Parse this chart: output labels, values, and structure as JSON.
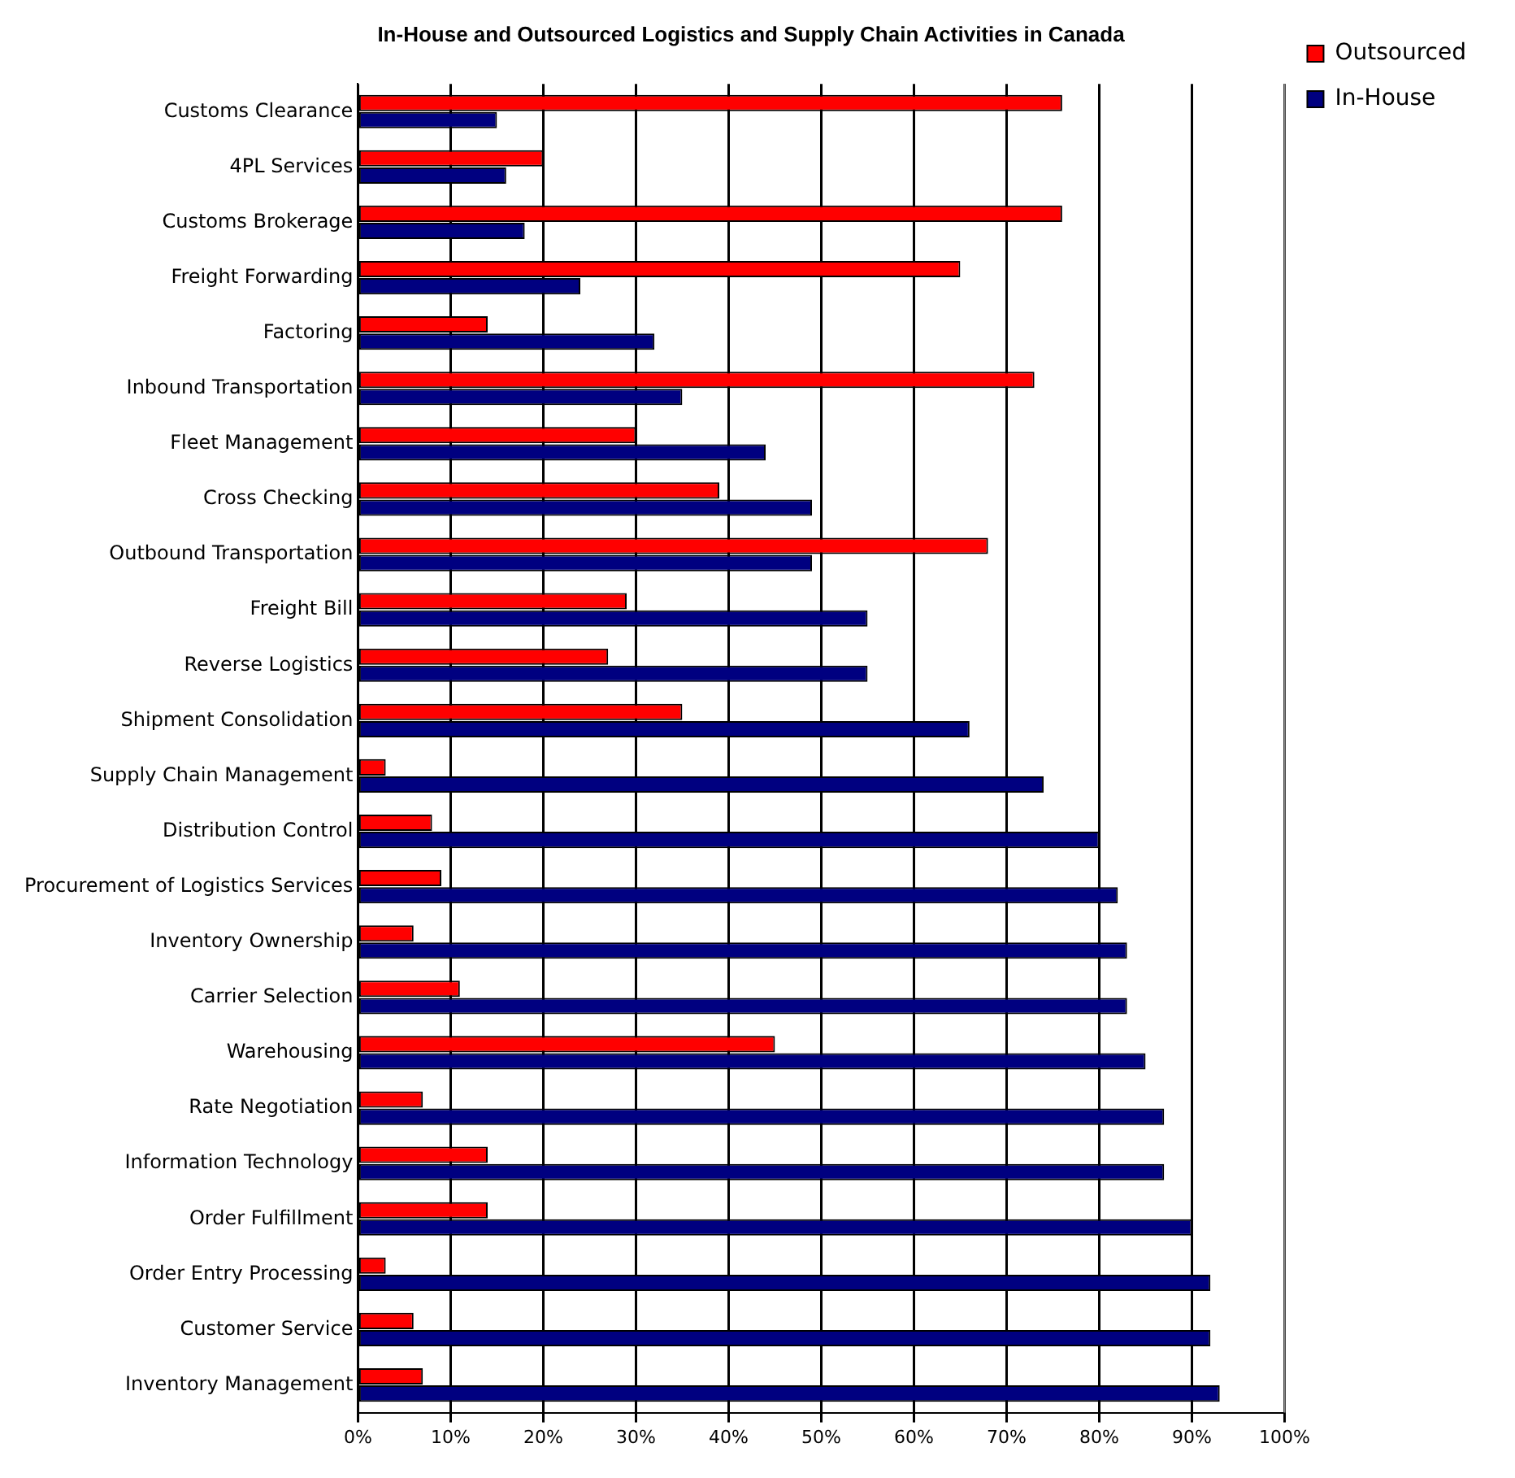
{
  "chart_data": {
    "type": "bar",
    "orientation": "horizontal",
    "title": "In-House and Outsourced Logistics and Supply Chain Activities in Canada",
    "categories": [
      "Customs Clearance",
      "4PL Services",
      "Customs Brokerage",
      "Freight Forwarding",
      "Factoring",
      "Inbound Transportation",
      "Fleet Management",
      "Cross Checking",
      "Outbound Transportation",
      "Freight Bill",
      "Reverse Logistics",
      "Shipment Consolidation",
      "Supply Chain Management",
      "Distribution Control",
      "Procurement of Logistics Services",
      "Inventory Ownership",
      "Carrier Selection",
      "Warehousing",
      "Rate Negotiation",
      "Information Technology",
      "Order Fulfillment",
      "Order Entry Processing",
      "Customer Service",
      "Inventory Management"
    ],
    "series": [
      {
        "name": "Outsourced",
        "color": "#ff0000",
        "values": [
          76,
          20,
          76,
          65,
          14,
          73,
          30,
          39,
          68,
          29,
          27,
          35,
          3,
          8,
          9,
          6,
          11,
          45,
          7,
          14,
          14,
          3,
          6,
          7
        ]
      },
      {
        "name": "In-House",
        "color": "#000080",
        "values": [
          15,
          16,
          18,
          24,
          32,
          35,
          44,
          49,
          49,
          55,
          55,
          66,
          74,
          80,
          82,
          83,
          83,
          85,
          87,
          87,
          90,
          92,
          92,
          93
        ]
      }
    ],
    "xlim": [
      0,
      100
    ],
    "xticks": [
      {
        "value": 0,
        "label": "0%"
      },
      {
        "value": 10,
        "label": "10%"
      },
      {
        "value": 20,
        "label": "20%"
      },
      {
        "value": 30,
        "label": "30%"
      },
      {
        "value": 40,
        "label": "40%"
      },
      {
        "value": 50,
        "label": "50%"
      },
      {
        "value": 60,
        "label": "60%"
      },
      {
        "value": 70,
        "label": "70%"
      },
      {
        "value": 80,
        "label": "80%"
      },
      {
        "value": 90,
        "label": "90%"
      },
      {
        "value": 100,
        "label": "100%"
      }
    ],
    "grid": "x",
    "legend": "top right"
  }
}
